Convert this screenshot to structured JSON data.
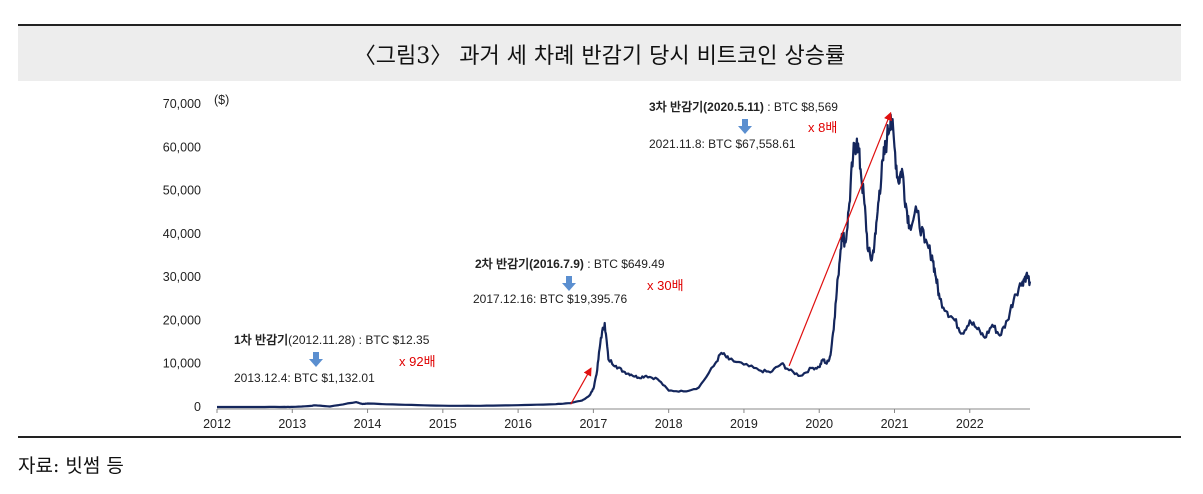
{
  "figure": {
    "title": "〈그림3〉 과거 세 차례 반감기 당시 비트코인 상승률",
    "source": "자료: 빗썸 등"
  },
  "chart_data": {
    "type": "line",
    "title": "〈그림3〉 과거 세 차례 반감기 당시 비트코인 상승률",
    "ylabel": "($)",
    "xlabel": "",
    "ylim": [
      0,
      70000
    ],
    "xlim": [
      2012,
      2022.8
    ],
    "y_ticks": [
      "0",
      "10,000",
      "20,000",
      "30,000",
      "40,000",
      "50,000",
      "60,000",
      "70,000"
    ],
    "y_tick_values": [
      0,
      10000,
      20000,
      30000,
      40000,
      50000,
      60000,
      70000
    ],
    "x_ticks": [
      "2012",
      "2013",
      "2014",
      "2015",
      "2016",
      "2017",
      "2018",
      "2019",
      "2020",
      "2021",
      "2022"
    ],
    "x_tick_values": [
      2012,
      2013,
      2014,
      2015,
      2016,
      2017,
      2018,
      2019,
      2020,
      2021,
      2022
    ],
    "series": [
      {
        "name": "BTC",
        "color": "#14265c",
        "x": [
          2012.0,
          2012.5,
          2012.9,
          2013.0,
          2013.25,
          2013.3,
          2013.5,
          2013.85,
          2013.93,
          2014.0,
          2014.5,
          2015.0,
          2015.5,
          2016.0,
          2016.5,
          2016.7,
          2016.85,
          2016.95,
          2017.0,
          2017.05,
          2017.1,
          2017.15,
          2017.2,
          2017.3,
          2017.4,
          2017.5,
          2017.6,
          2017.7,
          2017.85,
          2018.0,
          2018.2,
          2018.4,
          2018.6,
          2018.7,
          2018.8,
          2019.0,
          2019.2,
          2019.35,
          2019.5,
          2019.6,
          2019.75,
          2019.9,
          2020.0,
          2020.05,
          2020.1,
          2020.15,
          2020.2,
          2020.25,
          2020.3,
          2020.35,
          2020.4,
          2020.45,
          2020.5,
          2020.55,
          2020.6,
          2020.65,
          2020.7,
          2020.75,
          2020.8,
          2020.85,
          2020.9,
          2020.95,
          2021.0,
          2021.05,
          2021.1,
          2021.15,
          2021.2,
          2021.3,
          2021.4,
          2021.5,
          2021.55,
          2021.6,
          2021.7,
          2021.8,
          2021.9,
          2022.0,
          2022.1,
          2022.2,
          2022.3,
          2022.4,
          2022.5,
          2022.6,
          2022.7,
          2022.75,
          2022.8
        ],
        "values": [
          5,
          8,
          12,
          13,
          250,
          400,
          120,
          1132,
          700,
          800,
          500,
          300,
          280,
          420,
          650,
          900,
          1500,
          2700,
          4200,
          8500,
          16000,
          19400,
          11000,
          9500,
          8200,
          7500,
          6800,
          7200,
          6500,
          3800,
          3600,
          4500,
          9500,
          12500,
          11000,
          9800,
          8500,
          8000,
          10000,
          8500,
          7200,
          9000,
          9200,
          11000,
          10000,
          12000,
          20000,
          30000,
          40000,
          38000,
          47000,
          58000,
          62000,
          55000,
          47000,
          36000,
          34000,
          40000,
          50000,
          57000,
          62000,
          67558,
          60000,
          52000,
          55000,
          47000,
          42000,
          45000,
          38000,
          35000,
          30000,
          25000,
          22000,
          20000,
          17000,
          20000,
          18000,
          16000,
          19000,
          16500,
          20000,
          26000,
          29000,
          30500,
          29000
        ]
      }
    ],
    "annotations": [
      {
        "bold": "1차 반감기",
        "normal": "(2012.11.28) : BTC $12.35",
        "sub": "2013.12.4: BTC $1,132.01",
        "mult": "x 92배"
      },
      {
        "bold": "2차 반감기(2016.7.9)",
        "normal": " : BTC $649.49",
        "sub": "2017.12.16: BTC $19,395.76",
        "mult": "x 30배"
      },
      {
        "bold": "3차 반감기(2020.5.11)",
        "normal": " : BTC $8,569",
        "sub": "2021.11.8: BTC $67,558.61",
        "mult": "x 8배"
      }
    ],
    "grid": false,
    "legend": "none"
  },
  "colors": {
    "line": "#14265c",
    "arrow": "#e01010",
    "callout_arrow": "#5b8fd0",
    "multiplier": "#e00000"
  }
}
